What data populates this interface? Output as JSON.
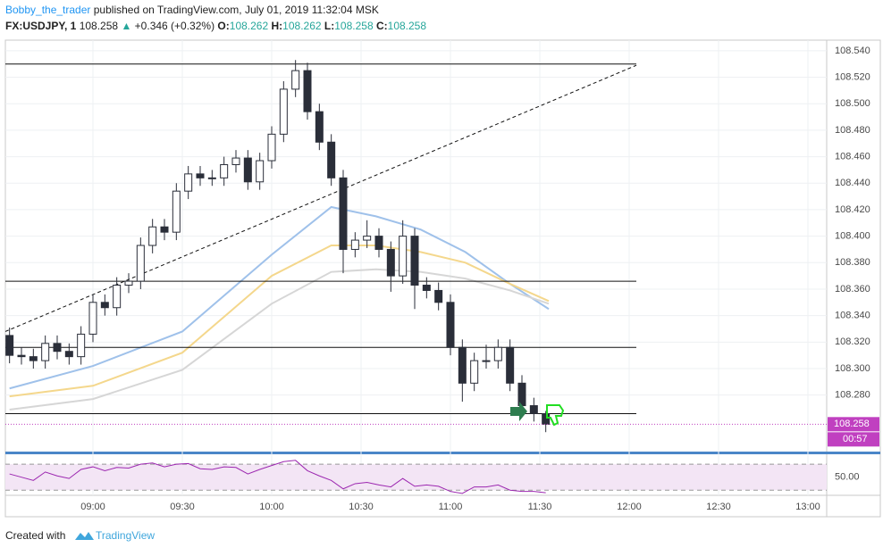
{
  "header": {
    "author": "Bobby_the_trader",
    "published": "published on TradingView.com, July 01, 2019 11:32:04 MSK",
    "symbol": "FX:USDJPY, 1",
    "last": "108.258",
    "arrow": "▲",
    "change": "+0.346 (+0.32%)",
    "open_label": "O:",
    "open": "108.262",
    "high_label": "H:",
    "high": "108.262",
    "low_label": "L:",
    "low": "108.258",
    "close_label": "C:",
    "close": "108.258"
  },
  "footer": {
    "text": "Created with",
    "brand": "TradingView"
  },
  "chart_data": {
    "type": "candlestick",
    "x": [
      512,
      516,
      520,
      524,
      528,
      532,
      536,
      540,
      544,
      548,
      552,
      556,
      560,
      564,
      568,
      572,
      576,
      580,
      584,
      588,
      592,
      596,
      600,
      604,
      608,
      612,
      616,
      620,
      624,
      628,
      632,
      636,
      640,
      644,
      648,
      652,
      656,
      660,
      664,
      668,
      672,
      676,
      680,
      684,
      688,
      692
    ],
    "open": [
      108.325,
      108.31,
      108.309,
      108.306,
      108.319,
      108.313,
      108.309,
      108.326,
      108.35,
      108.346,
      108.363,
      108.366,
      108.393,
      108.407,
      108.403,
      108.434,
      108.447,
      108.444,
      108.444,
      108.454,
      108.459,
      108.441,
      108.457,
      108.477,
      108.511,
      108.525,
      108.494,
      108.471,
      108.444,
      108.39,
      108.397,
      108.4,
      108.39,
      108.37,
      108.4,
      108.363,
      108.359,
      108.35,
      108.316,
      108.289,
      108.306,
      108.306,
      108.316,
      108.289,
      108.272,
      108.266
    ],
    "high": [
      108.331,
      108.316,
      108.315,
      108.325,
      108.325,
      108.319,
      108.332,
      108.356,
      108.356,
      108.369,
      108.372,
      108.399,
      108.413,
      108.413,
      108.44,
      108.453,
      108.453,
      108.45,
      108.46,
      108.465,
      108.465,
      108.463,
      108.483,
      108.517,
      108.533,
      108.531,
      108.5,
      108.477,
      108.45,
      108.403,
      108.412,
      108.406,
      108.396,
      108.412,
      108.406,
      108.369,
      108.365,
      108.356,
      108.322,
      108.312,
      108.318,
      108.322,
      108.322,
      108.295,
      108.278,
      108.268
    ],
    "low": [
      108.304,
      108.303,
      108.3,
      108.3,
      108.307,
      108.303,
      108.303,
      108.32,
      108.34,
      108.34,
      108.357,
      108.36,
      108.387,
      108.397,
      108.397,
      108.428,
      108.438,
      108.438,
      108.438,
      108.448,
      108.435,
      108.435,
      108.451,
      108.471,
      108.505,
      108.488,
      108.465,
      108.438,
      108.372,
      108.384,
      108.391,
      108.384,
      108.358,
      108.364,
      108.345,
      108.353,
      108.344,
      108.31,
      108.275,
      108.283,
      108.3,
      108.3,
      108.283,
      108.266,
      108.26,
      108.252
    ],
    "close": [
      108.31,
      108.309,
      108.306,
      108.319,
      108.313,
      108.309,
      108.326,
      108.35,
      108.346,
      108.363,
      108.366,
      108.393,
      108.407,
      108.403,
      108.434,
      108.447,
      108.444,
      108.444,
      108.454,
      108.459,
      108.441,
      108.457,
      108.477,
      108.511,
      108.525,
      108.494,
      108.471,
      108.444,
      108.39,
      108.397,
      108.4,
      108.39,
      108.37,
      108.4,
      108.363,
      108.359,
      108.35,
      108.316,
      108.289,
      108.306,
      108.306,
      108.316,
      108.289,
      108.272,
      108.266,
      108.258
    ],
    "up_color": "#ffffff",
    "down_color": "#2a2e39",
    "wick_color": "#2a2e39",
    "moving_averages": {
      "x": [
        512,
        540,
        570,
        600,
        620,
        635,
        650,
        665,
        680,
        693
      ],
      "series": [
        {
          "color": "#9fc1ea",
          "values": [
            108.285,
            108.302,
            108.328,
            108.386,
            108.422,
            108.415,
            108.405,
            108.388,
            108.364,
            108.345
          ]
        },
        {
          "color": "#f4d78c",
          "values": [
            108.279,
            108.287,
            108.312,
            108.37,
            108.393,
            108.393,
            108.388,
            108.38,
            108.364,
            108.351
          ]
        },
        {
          "color": "#d6d6d6",
          "values": [
            108.269,
            108.277,
            108.299,
            108.349,
            108.373,
            108.375,
            108.373,
            108.368,
            108.359,
            108.349
          ]
        }
      ]
    },
    "levels": [
      108.53,
      108.366,
      108.316,
      108.266
    ],
    "level_end": 722.4,
    "trendline": {
      "x": [
        510.6,
        722.4
      ],
      "y": [
        108.328,
        108.529
      ]
    },
    "last_price": {
      "value": 108.258,
      "label": "108.258"
    },
    "countdown": "00:57",
    "xlim": [
      510.6,
      786.3
    ],
    "ylim": [
      108.238,
      108.548
    ],
    "xticks": [
      {
        "value": 540,
        "label": "09:00"
      },
      {
        "value": 570,
        "label": "09:30"
      },
      {
        "value": 600,
        "label": "10:00"
      },
      {
        "value": 630,
        "label": "10:30"
      },
      {
        "value": 660,
        "label": "11:00"
      },
      {
        "value": 690,
        "label": "11:30"
      },
      {
        "value": 720,
        "label": "12:00"
      },
      {
        "value": 750,
        "label": "12:30"
      },
      {
        "value": 780,
        "label": "13:00"
      }
    ],
    "yticks": [
      {
        "value": 108.28,
        "label": "108.280"
      },
      {
        "value": 108.3,
        "label": "108.300"
      },
      {
        "value": 108.32,
        "label": "108.320"
      },
      {
        "value": 108.34,
        "label": "108.340"
      },
      {
        "value": 108.36,
        "label": "108.360"
      },
      {
        "value": 108.38,
        "label": "108.380"
      },
      {
        "value": 108.4,
        "label": "108.400"
      },
      {
        "value": 108.42,
        "label": "108.420"
      },
      {
        "value": 108.44,
        "label": "108.440"
      },
      {
        "value": 108.46,
        "label": "108.460"
      },
      {
        "value": 108.48,
        "label": "108.480"
      },
      {
        "value": 108.5,
        "label": "108.500"
      },
      {
        "value": 108.52,
        "label": "108.520"
      },
      {
        "value": 108.54,
        "label": "108.540"
      }
    ],
    "grid": true,
    "rsi": {
      "color": "#9c27b0",
      "values": [
        55,
        50,
        45,
        58,
        52,
        48,
        62,
        66,
        60,
        65,
        64,
        70,
        72,
        66,
        70,
        71,
        63,
        62,
        66,
        65,
        55,
        62,
        68,
        74,
        76,
        60,
        52,
        45,
        32,
        40,
        42,
        38,
        35,
        48,
        36,
        38,
        36,
        28,
        25,
        35,
        35,
        38,
        30,
        28,
        28,
        26
      ],
      "ylim": [
        24.8,
        84
      ],
      "bands": [
        70,
        30
      ],
      "yticks": [
        {
          "value": 50,
          "label": "50.00"
        }
      ]
    }
  }
}
